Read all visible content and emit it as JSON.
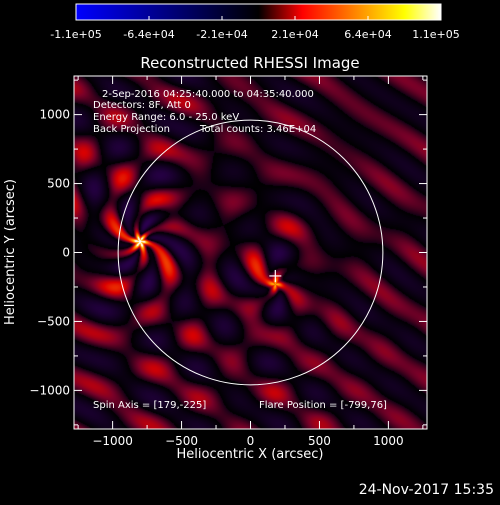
{
  "colorbar": {
    "tick_labels": [
      "-1.1e+05",
      "-6.4e+04",
      "-2.1e+04",
      "2.1e+04",
      "6.4e+04",
      "1.1e+05"
    ],
    "range": [
      -110000,
      110000
    ],
    "palette": [
      "#0000ff",
      "#000000",
      "#ff0000",
      "#ffa500",
      "#ffff00",
      "#ffffff"
    ]
  },
  "plot": {
    "title": "Reconstructed RHESSI Image",
    "xlabel": "Heliocentric X (arcsec)",
    "ylabel": "Heliocentric Y (arcsec)",
    "xlim": [
      -1280,
      1280
    ],
    "ylim": [
      -1280,
      1280
    ],
    "xticks": [
      -1000,
      -500,
      0,
      500,
      1000
    ],
    "yticks": [
      -1000,
      -500,
      0,
      500,
      1000
    ],
    "xtick_labels": [
      "−1000",
      "−500",
      "0",
      "500",
      "1000"
    ],
    "ytick_labels": [
      "−1000",
      "−500",
      "0",
      "500",
      "1000"
    ],
    "solar_limb_radius_arcsec": 960,
    "sources": [
      {
        "x": -800,
        "y": 80,
        "peak": 110000
      },
      {
        "x": 180,
        "y": -230,
        "peak": 64000
      }
    ],
    "cross_marker": {
      "x": 180,
      "y": -170
    },
    "annotations": {
      "time_range": "2-Sep-2016 04:25:40.000 to 04:35:40.000",
      "detectors": "Detectors: 8F, Att 0",
      "energy_range": "Energy Range: 6.0 - 25.0 keV",
      "method": "Back Projection",
      "total_counts": "Total counts: 3.46E+04",
      "spin_axis": "Spin Axis = [179,-225]",
      "flare_position": "Flare Position = [-799,76]"
    }
  },
  "footer": {
    "timestamp": "24-Nov-2017 15:35"
  }
}
